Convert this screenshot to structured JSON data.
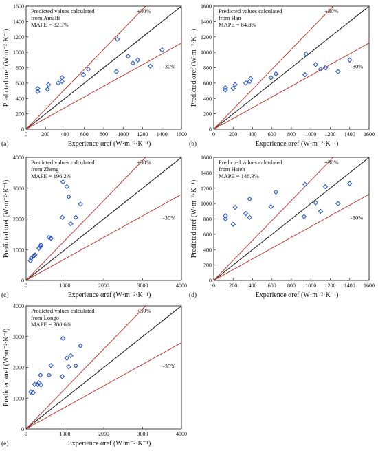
{
  "figure": {
    "series_styles": {
      "marker_color": "#2a57c9",
      "diagonal_color": "#222222",
      "band_color": "#c0392b"
    }
  },
  "chart_data": [
    {
      "type": "scatter",
      "panel_label": "(a)",
      "annotation": [
        "Predicted values calculated",
        "from Amalfi",
        "MAPE = 82.3%"
      ],
      "xlabel": "Experience αref (W·m⁻²·K⁻¹)",
      "ylabel": "Predicted αref (W·m⁻²·K⁻¹)",
      "xlim": [
        0,
        1600
      ],
      "ylim": [
        0,
        1600
      ],
      "xticks": [
        "0",
        "200",
        "400",
        "600",
        "800",
        "1000",
        "1200",
        "1400",
        "1600"
      ],
      "yticks": [
        "0",
        "200",
        "400",
        "600",
        "800",
        "1000",
        "1200",
        "1400",
        "1600"
      ],
      "band_labels": {
        "upper": "+30%",
        "lower": "-30%"
      },
      "points": [
        [
          120,
          490
        ],
        [
          120,
          530
        ],
        [
          220,
          520
        ],
        [
          230,
          580
        ],
        [
          330,
          600
        ],
        [
          370,
          620
        ],
        [
          370,
          670
        ],
        [
          590,
          710
        ],
        [
          640,
          780
        ],
        [
          930,
          750
        ],
        [
          940,
          1170
        ],
        [
          1050,
          950
        ],
        [
          1100,
          860
        ],
        [
          1150,
          900
        ],
        [
          1280,
          820
        ],
        [
          1400,
          1030
        ]
      ]
    },
    {
      "type": "scatter",
      "panel_label": "(b)",
      "annotation": [
        "Predicted values calculated",
        "from Han",
        "MAPE = 84.8%"
      ],
      "xlabel": "Experience αref (W·m⁻²·K⁻¹)",
      "ylabel": "Predicted αref (W·m⁻²·K⁻¹)",
      "xlim": [
        0,
        1600
      ],
      "ylim": [
        0,
        1600
      ],
      "xticks": [
        "0",
        "200",
        "400",
        "600",
        "800",
        "1000",
        "1200",
        "1400",
        "1600"
      ],
      "yticks": [
        "0",
        "200",
        "400",
        "600",
        "800",
        "1000",
        "1200",
        "1400",
        "1600"
      ],
      "band_labels": {
        "upper": "+30%",
        "lower": "-30%"
      },
      "points": [
        [
          120,
          510
        ],
        [
          120,
          540
        ],
        [
          200,
          530
        ],
        [
          220,
          580
        ],
        [
          330,
          600
        ],
        [
          370,
          620
        ],
        [
          380,
          660
        ],
        [
          590,
          670
        ],
        [
          640,
          720
        ],
        [
          940,
          710
        ],
        [
          950,
          980
        ],
        [
          1050,
          840
        ],
        [
          1100,
          780
        ],
        [
          1150,
          800
        ],
        [
          1280,
          750
        ],
        [
          1400,
          900
        ]
      ]
    },
    {
      "type": "scatter",
      "panel_label": "(c)",
      "annotation": [
        "Predicted values calculated",
        "from Zheng",
        "MAPE = 196.2%"
      ],
      "xlabel": "Experience αref (W·m⁻²·K⁻¹)",
      "ylabel": "Predicted αref (W·m⁻²·K⁻¹)",
      "xlim": [
        0,
        4000
      ],
      "ylim": [
        0,
        4000
      ],
      "xticks": [
        "0",
        "1000",
        "2000",
        "3000",
        "4000"
      ],
      "yticks": [
        "0",
        "1000",
        "2000",
        "3000",
        "4000"
      ],
      "band_labels": {
        "upper": "+30%",
        "lower": "-30%"
      },
      "points": [
        [
          110,
          640
        ],
        [
          130,
          720
        ],
        [
          200,
          800
        ],
        [
          230,
          830
        ],
        [
          330,
          1040
        ],
        [
          370,
          1100
        ],
        [
          380,
          1150
        ],
        [
          590,
          1400
        ],
        [
          640,
          1370
        ],
        [
          930,
          2050
        ],
        [
          950,
          3200
        ],
        [
          1050,
          3050
        ],
        [
          1100,
          2720
        ],
        [
          1150,
          1840
        ],
        [
          1280,
          2050
        ],
        [
          1400,
          2480
        ]
      ]
    },
    {
      "type": "scatter",
      "panel_label": "(d)",
      "annotation": [
        "Predicted values calculated",
        "from Hsieh",
        "MAPE = 146.3%"
      ],
      "xlabel": "Experience αref (W·m⁻²·K⁻¹)",
      "ylabel": "Predicted αref (W·m⁻²·K⁻¹)",
      "xlim": [
        0,
        1600
      ],
      "ylim": [
        0,
        1600
      ],
      "xticks": [
        "0",
        "200",
        "400",
        "600",
        "800",
        "1000",
        "1200",
        "1400",
        "1600"
      ],
      "yticks": [
        "0",
        "200",
        "400",
        "600",
        "800",
        "1000",
        "1200",
        "1400",
        "1600"
      ],
      "band_labels": {
        "upper": "+30%",
        "lower": "-30%"
      },
      "points": [
        [
          120,
          800
        ],
        [
          120,
          840
        ],
        [
          200,
          730
        ],
        [
          220,
          950
        ],
        [
          330,
          870
        ],
        [
          370,
          820
        ],
        [
          370,
          1060
        ],
        [
          590,
          960
        ],
        [
          640,
          1150
        ],
        [
          930,
          830
        ],
        [
          940,
          1250
        ],
        [
          1050,
          1010
        ],
        [
          1100,
          900
        ],
        [
          1150,
          1220
        ],
        [
          1280,
          1000
        ],
        [
          1400,
          1260
        ]
      ]
    },
    {
      "type": "scatter",
      "panel_label": "(e)",
      "annotation": [
        "Predicted values calculated",
        "from  Longo",
        "MAPE = 300.6%"
      ],
      "xlabel": "Experience αref (W·m⁻²·K⁻¹)",
      "ylabel": "Predicted αref (W·m⁻²·K⁻¹)",
      "xlim": [
        0,
        4000
      ],
      "ylim": [
        0,
        4000
      ],
      "xticks": [
        "0",
        "1000",
        "2000",
        "3000",
        "4000"
      ],
      "yticks": [
        "0",
        "1000",
        "2000",
        "3000",
        "4000"
      ],
      "band_labels": {
        "upper": "+30%",
        "lower": "-30%"
      },
      "points": [
        [
          120,
          1200
        ],
        [
          180,
          1180
        ],
        [
          220,
          1450
        ],
        [
          300,
          1440
        ],
        [
          330,
          1500
        ],
        [
          370,
          1750
        ],
        [
          380,
          1430
        ],
        [
          590,
          1750
        ],
        [
          640,
          2060
        ],
        [
          930,
          1700
        ],
        [
          950,
          2940
        ],
        [
          1050,
          2300
        ],
        [
          1100,
          2020
        ],
        [
          1150,
          2380
        ],
        [
          1280,
          2050
        ],
        [
          1400,
          2700
        ]
      ]
    }
  ]
}
